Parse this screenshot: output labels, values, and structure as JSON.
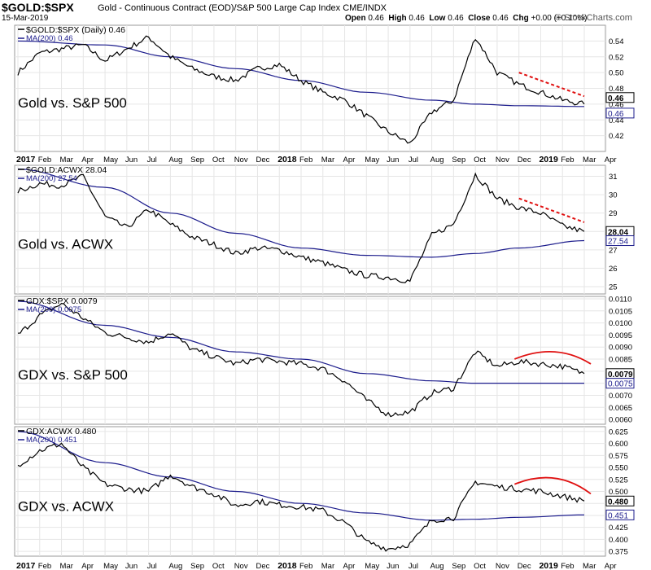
{
  "header": {
    "symbol": "$GOLD:$SPX",
    "subtitle": "Gold - Continuous Contract (EOD)/S&P 500 Large Cap Index  CME/INDX",
    "date": "15-Mar-2019",
    "ohlc": {
      "open": "0.46",
      "high": "0.46",
      "low": "0.46",
      "close": "0.46",
      "chg": "+0.00 (+0.10%)"
    },
    "watermark": "© StockCharts.com"
  },
  "chart_data": [
    {
      "type": "line",
      "legend_price": "$GOLD:$SPX (Daily) 0.46",
      "legend_ma": "MA(200) 0.46",
      "annotation": "Gold vs. S&P 500",
      "ylim": [
        0.4,
        0.56
      ],
      "yticks": [
        0.42,
        0.44,
        0.46,
        0.48,
        0.5,
        0.52,
        0.54
      ],
      "ytick_labels": [
        "0.42",
        "0.44",
        "0.46",
        "0.48",
        "0.50",
        "0.52",
        "0.54"
      ],
      "last_price_label": "0.46",
      "last_ma_label": "0.46",
      "series_points_x": [
        0,
        1,
        2,
        3,
        4,
        5,
        6,
        7,
        8,
        9,
        10,
        11,
        12,
        13,
        14,
        15,
        16,
        17,
        18,
        19,
        20,
        21,
        22,
        23,
        24,
        25,
        26
      ],
      "series_points_y": [
        0.5,
        0.525,
        0.53,
        0.535,
        0.515,
        0.53,
        0.545,
        0.52,
        0.505,
        0.495,
        0.49,
        0.505,
        0.51,
        0.49,
        0.475,
        0.465,
        0.445,
        0.425,
        0.41,
        0.45,
        0.465,
        0.545,
        0.5,
        0.485,
        0.475,
        0.465,
        0.46
      ],
      "ma_points_x": [
        0,
        4,
        7,
        10,
        13,
        16,
        19,
        21,
        23,
        26
      ],
      "ma_points_y": [
        0.54,
        0.535,
        0.52,
        0.505,
        0.49,
        0.475,
        0.465,
        0.46,
        0.458,
        0.457
      ],
      "trend_line": {
        "x": [
          23,
          26
        ],
        "y": [
          0.5,
          0.47
        ]
      }
    },
    {
      "type": "line",
      "legend_price": "$GOLD:ACWX 28.04",
      "legend_ma": "MA(200) 27.54",
      "annotation": "Gold vs. ACWX",
      "ylim": [
        24.6,
        31.6
      ],
      "yticks": [
        25,
        26,
        27,
        28,
        29,
        30,
        31
      ],
      "ytick_labels": [
        "25",
        "26",
        "27",
        "28",
        "29",
        "30",
        "31"
      ],
      "last_price_label": "28.04",
      "last_ma_label": "27.54",
      "series_points_x": [
        0,
        1,
        2,
        3,
        4,
        5,
        6,
        7,
        8,
        9,
        10,
        11,
        12,
        13,
        14,
        15,
        16,
        17,
        18,
        19,
        20,
        21,
        22,
        23,
        24,
        25,
        26
      ],
      "series_points_y": [
        30.2,
        30.6,
        30.5,
        31.0,
        28.8,
        28.2,
        29.2,
        28.4,
        27.7,
        27.3,
        26.8,
        27.1,
        27.0,
        26.6,
        26.3,
        25.9,
        25.6,
        25.5,
        25.3,
        27.8,
        28.4,
        31.1,
        29.8,
        29.3,
        29.0,
        28.3,
        28.0
      ],
      "ma_points_x": [
        0,
        4,
        7,
        10,
        13,
        16,
        19,
        21,
        23,
        26
      ],
      "ma_points_y": [
        31.4,
        30.4,
        29.0,
        27.9,
        27.1,
        26.7,
        26.6,
        26.8,
        27.1,
        27.5
      ],
      "trend_line": {
        "x": [
          23,
          26
        ],
        "y": [
          29.8,
          28.5
        ]
      }
    },
    {
      "type": "line",
      "legend_price": "GDX:$SPX 0.0079",
      "legend_ma": "MA(200) 0.0075",
      "annotation": "GDX vs. S&P 500",
      "ylim": [
        0.0058,
        0.0111
      ],
      "yticks": [
        0.006,
        0.0065,
        0.007,
        0.0075,
        0.008,
        0.0085,
        0.009,
        0.0095,
        0.01,
        0.0105,
        0.011
      ],
      "ytick_labels": [
        "0.0060",
        "0.0065",
        "0.0070",
        "0.0075",
        "0.0080",
        "0.0085",
        "0.0090",
        "0.0095",
        "0.0100",
        "0.0105",
        "0.0110"
      ],
      "last_price_label": "0.0079",
      "last_ma_label": "0.0075",
      "series_points_x": [
        0,
        1,
        2,
        3,
        4,
        5,
        6,
        7,
        8,
        9,
        10,
        11,
        12,
        13,
        14,
        15,
        16,
        17,
        18,
        19,
        20,
        21,
        22,
        23,
        24,
        25,
        26
      ],
      "series_points_y": [
        0.0095,
        0.0103,
        0.0108,
        0.0102,
        0.0096,
        0.0094,
        0.0092,
        0.0096,
        0.0089,
        0.0086,
        0.0083,
        0.0085,
        0.0084,
        0.0083,
        0.0081,
        0.0076,
        0.0068,
        0.0062,
        0.0063,
        0.0071,
        0.0073,
        0.0088,
        0.0082,
        0.0084,
        0.0083,
        0.0082,
        0.0079
      ],
      "ma_points_x": [
        0,
        4,
        7,
        10,
        13,
        16,
        19,
        21,
        23,
        26
      ],
      "ma_points_y": [
        0.0109,
        0.0099,
        0.0094,
        0.0088,
        0.0085,
        0.0079,
        0.0076,
        0.0075,
        0.0075,
        0.0075
      ],
      "arc": {
        "x": [
          22.8,
          24.7,
          26.3
        ],
        "y": [
          0.0085,
          0.0088,
          0.0083
        ]
      }
    },
    {
      "type": "line",
      "legend_price": "GDX:ACWX 0.480",
      "legend_ma": "MA(200) 0.451",
      "annotation": "GDX vs. ACWX",
      "ylim": [
        0.365,
        0.635
      ],
      "yticks": [
        0.375,
        0.4,
        0.425,
        0.45,
        0.475,
        0.5,
        0.525,
        0.55,
        0.575,
        0.6,
        0.625
      ],
      "ytick_labels": [
        "0.375",
        "0.400",
        "0.425",
        "0.450",
        "0.475",
        "0.500",
        "0.525",
        "0.550",
        "0.575",
        "0.600",
        "0.625"
      ],
      "last_price_label": "0.480",
      "last_ma_label": "0.451",
      "series_points_x": [
        0,
        1,
        2,
        3,
        4,
        5,
        6,
        7,
        8,
        9,
        10,
        11,
        12,
        13,
        14,
        15,
        16,
        17,
        18,
        19,
        20,
        21,
        22,
        23,
        24,
        25,
        26
      ],
      "series_points_y": [
        0.555,
        0.585,
        0.6,
        0.55,
        0.515,
        0.505,
        0.5,
        0.535,
        0.51,
        0.495,
        0.47,
        0.48,
        0.472,
        0.468,
        0.46,
        0.435,
        0.395,
        0.38,
        0.39,
        0.44,
        0.445,
        0.52,
        0.51,
        0.505,
        0.5,
        0.49,
        0.48
      ],
      "ma_points_x": [
        0,
        4,
        7,
        10,
        13,
        16,
        19,
        21,
        23,
        26
      ],
      "ma_points_y": [
        0.625,
        0.56,
        0.53,
        0.5,
        0.475,
        0.455,
        0.44,
        0.442,
        0.446,
        0.451
      ],
      "arc": {
        "x": [
          22.8,
          24.7,
          26.3
        ],
        "y": [
          0.515,
          0.53,
          0.495
        ]
      }
    }
  ],
  "x_axis": {
    "labels": [
      "2017",
      "Feb",
      "Mar",
      "Apr",
      "May",
      "Jun",
      "Jul",
      "Aug",
      "Sep",
      "Oct",
      "Nov",
      "Dec",
      "2018",
      "Feb",
      "Mar",
      "Apr",
      "May",
      "Jun",
      "Jul",
      "Aug",
      "Sep",
      "Oct",
      "Nov",
      "Dec",
      "2019",
      "Feb",
      "Mar",
      "Apr"
    ],
    "bold_labels": [
      "2017",
      "2018",
      "2019"
    ]
  },
  "colors": {
    "price": "#000000",
    "ma": "#1c1c8c",
    "trend": "#e01010",
    "grid": "#e6e6e6",
    "frame": "#999999"
  }
}
